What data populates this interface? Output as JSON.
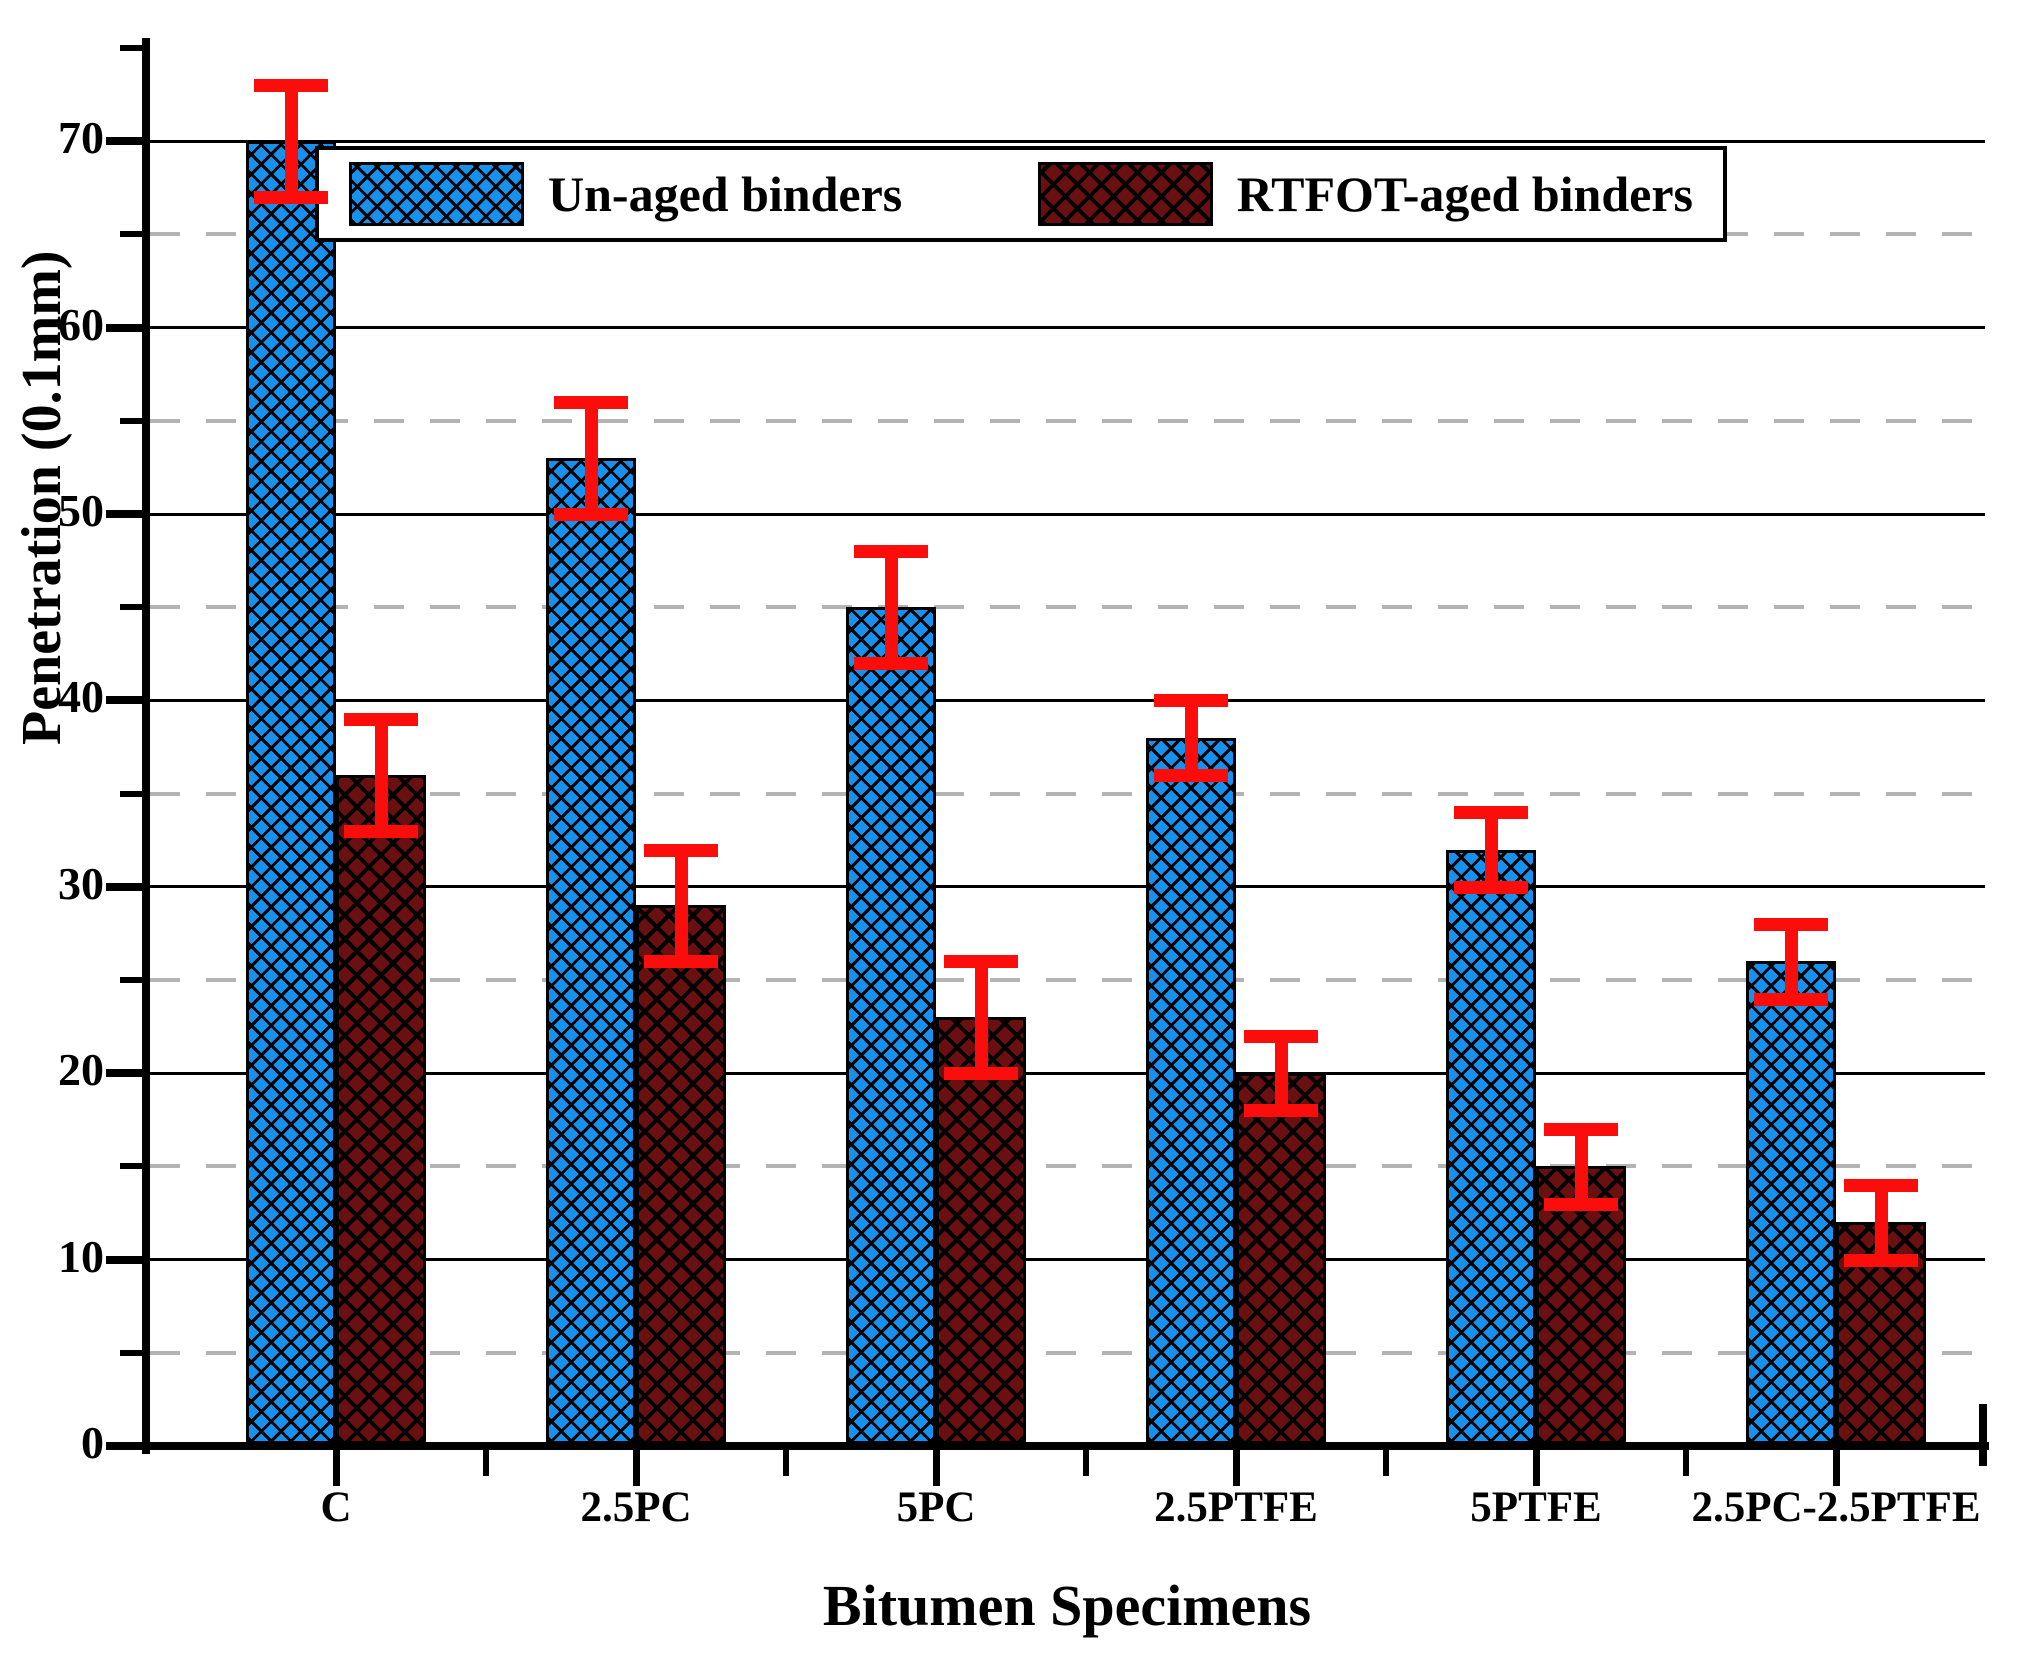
{
  "chart_data": {
    "type": "bar",
    "title": "",
    "xlabel": "Bitumen Specimens",
    "ylabel": "Penetration (0.1mm)",
    "categories": [
      "C",
      "2.5PC",
      "5PC",
      "2.5PTFE",
      "5PTFE",
      "2.5PC-2.5PTFE"
    ],
    "series": [
      {
        "name": "Un-aged binders",
        "color": "#1791ee",
        "values": [
          70,
          53,
          45,
          38,
          32,
          26
        ],
        "error": [
          3,
          3,
          3,
          2,
          2,
          2
        ]
      },
      {
        "name": "RTFOT-aged binders",
        "color": "#6b1011",
        "values": [
          36,
          29,
          23,
          20,
          15,
          12
        ],
        "error": [
          3,
          3,
          3,
          2,
          2,
          2
        ]
      }
    ],
    "ylim": [
      0,
      77
    ],
    "yticks": [
      0,
      10,
      20,
      30,
      40,
      50,
      60,
      70
    ],
    "yticks_minor_dashed": [
      5,
      15,
      25,
      35,
      45,
      55,
      65
    ],
    "error_bar_color": "#fb0d0c",
    "grid": "solid black at major ticks, dashed gray at minor ticks",
    "legend_position": "top-center inside plot",
    "bar_style": "crosshatched",
    "background": "#ffffff"
  }
}
